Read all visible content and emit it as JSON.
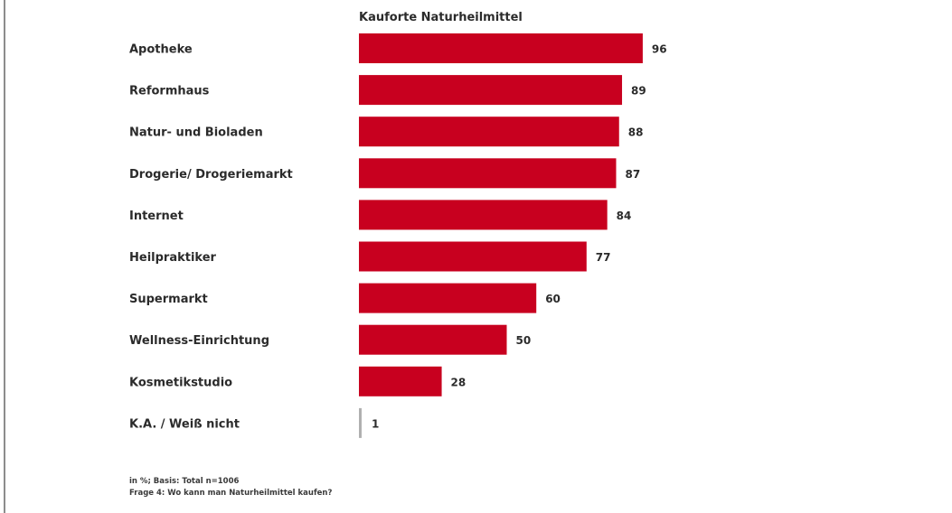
{
  "chart_data": {
    "type": "bar",
    "orientation": "horizontal",
    "title": "Kauforte Naturheilmittel",
    "categories": [
      "Apotheke",
      "Reformhaus",
      "Natur- und Bioladen",
      "Drogerie/ Drogeriemarkt",
      "Internet",
      "Heilpraktiker",
      "Supermarkt",
      "Wellness-Einrichtung",
      "Kosmetikstudio",
      "K.A. / Weiß nicht"
    ],
    "values": [
      96,
      89,
      88,
      87,
      84,
      77,
      60,
      50,
      28,
      1
    ],
    "xlim": [
      0,
      100
    ],
    "grid": false,
    "legend": "none",
    "colors": {
      "bar": "#c8001f",
      "bar_minor": "#b0b0b0"
    }
  },
  "notes": {
    "basis": "in %; Basis: Total n=1006",
    "question": "Frage 4: Wo kann man Naturheilmittel kaufen?"
  }
}
